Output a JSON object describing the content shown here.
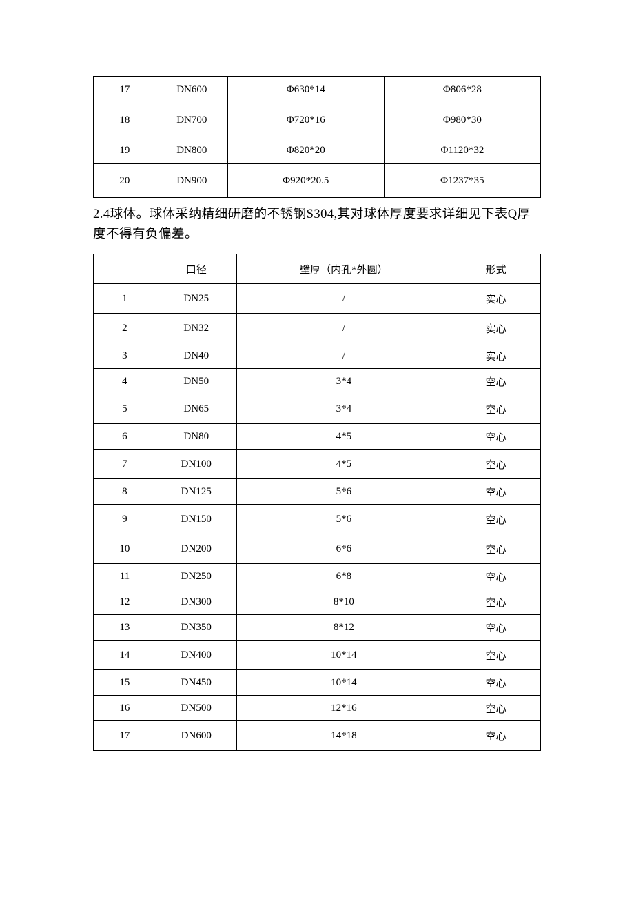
{
  "table1": {
    "rows": [
      {
        "num": "17",
        "dn": "DN600",
        "c1": "Φ630*14",
        "c2": "Φ806*28",
        "tall": false
      },
      {
        "num": "18",
        "dn": "DN700",
        "c1": "Φ720*16",
        "c2": "Φ980*30",
        "tall": true
      },
      {
        "num": "19",
        "dn": "DN800",
        "c1": "Φ820*20",
        "c2": "Φ1120*32",
        "tall": false
      },
      {
        "num": "20",
        "dn": "DN900",
        "c1": "Φ920*20.5",
        "c2": "Φ1237*35",
        "tall": true
      }
    ]
  },
  "paragraph": "2.4球体。球体采纳精细研磨的不锈钢S304,其对球体厚度要求详细见下表Q厚度不得有负偏差。",
  "table2": {
    "headers": {
      "h0": "",
      "h1": "口径",
      "h2": "壁厚（内孔*外圆）",
      "h3": "形式"
    },
    "rows": [
      {
        "num": "1",
        "dn": "DN25",
        "thk": "/",
        "form": "实心",
        "short": false
      },
      {
        "num": "2",
        "dn": "DN32",
        "thk": "/",
        "form": "实心",
        "short": false
      },
      {
        "num": "3",
        "dn": "DN40",
        "thk": "/",
        "form": "实心",
        "short": true
      },
      {
        "num": "4",
        "dn": "DN50",
        "thk": "3*4",
        "form": "空心",
        "short": true
      },
      {
        "num": "5",
        "dn": "DN65",
        "thk": "3*4",
        "form": "空心",
        "short": false
      },
      {
        "num": "6",
        "dn": "DN80",
        "thk": "4*5",
        "form": "空心",
        "short": true
      },
      {
        "num": "7",
        "dn": "DN100",
        "thk": "4*5",
        "form": "空心",
        "short": false
      },
      {
        "num": "8",
        "dn": "DN125",
        "thk": "5*6",
        "form": "空心",
        "short": true
      },
      {
        "num": "9",
        "dn": "DN150",
        "thk": "5*6",
        "form": "空心",
        "short": false
      },
      {
        "num": "10",
        "dn": "DN200",
        "thk": "6*6",
        "form": "空心",
        "short": false
      },
      {
        "num": "11",
        "dn": "DN250",
        "thk": "6*8",
        "form": "空心",
        "short": true
      },
      {
        "num": "12",
        "dn": "DN300",
        "thk": "8*10",
        "form": "空心",
        "short": true
      },
      {
        "num": "13",
        "dn": "DN350",
        "thk": "8*12",
        "form": "空心",
        "short": true
      },
      {
        "num": "14",
        "dn": "DN400",
        "thk": "10*14",
        "form": "空心",
        "short": false
      },
      {
        "num": "15",
        "dn": "DN450",
        "thk": "10*14",
        "form": "空心",
        "short": true
      },
      {
        "num": "16",
        "dn": "DN500",
        "thk": "12*16",
        "form": "空心",
        "short": true
      },
      {
        "num": "17",
        "dn": "DN600",
        "thk": "14*18",
        "form": "空心",
        "short": false
      }
    ]
  }
}
